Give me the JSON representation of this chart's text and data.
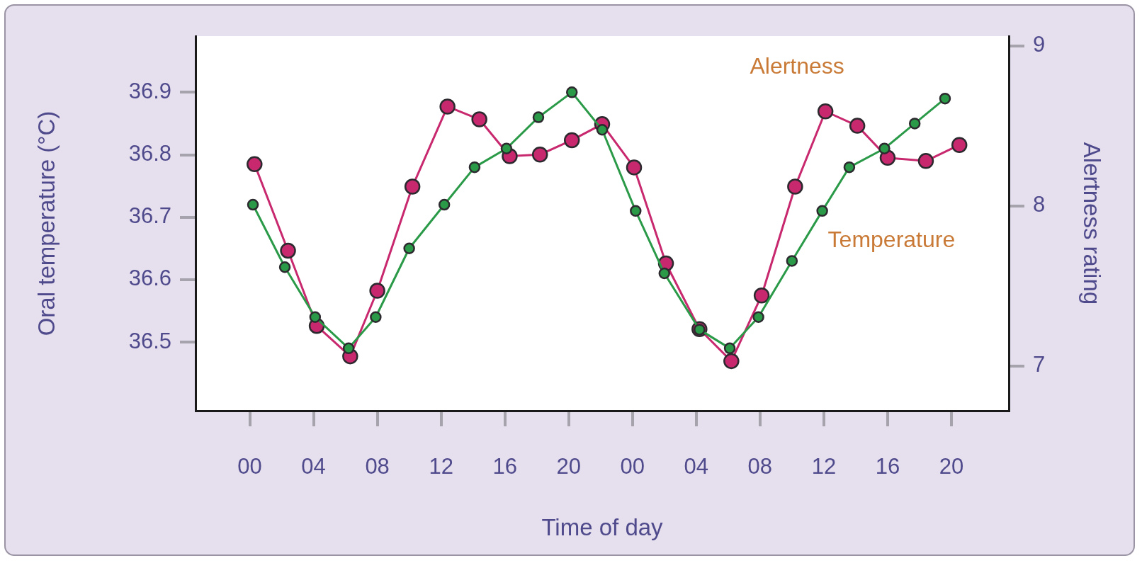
{
  "chart_data": {
    "type": "line",
    "xlabel": "Time of day",
    "ylabel": "Oral temperature (°C)",
    "y2label": "Alertness rating",
    "series": [
      {
        "name": "Alertness",
        "color": "#c8286e",
        "axis": "y2",
        "x": [
          0.3,
          2.4,
          4.2,
          6.3,
          8,
          10.2,
          12.4,
          14.4,
          16.3,
          18.2,
          20.2,
          22.1,
          24.1,
          26.1,
          28.2,
          30.2,
          32.1,
          34.2,
          36.1,
          38.1,
          40,
          42.4,
          44.5
        ],
        "values": [
          8.26,
          7.72,
          7.25,
          7.06,
          7.47,
          8.12,
          8.62,
          8.54,
          8.31,
          8.32,
          8.41,
          8.51,
          8.24,
          7.64,
          7.23,
          7.03,
          7.44,
          8.12,
          8.59,
          8.5,
          8.3,
          8.28,
          8.38
        ]
      },
      {
        "name": "Temperature",
        "color": "#2a9a48",
        "x": [
          0.2,
          2.2,
          4.1,
          6.2,
          7.9,
          10,
          12.2,
          14.1,
          16.1,
          18.1,
          20.2,
          22.1,
          24.2,
          26,
          28.2,
          30.1,
          31.9,
          34,
          35.9,
          37.6,
          39.8,
          41.7,
          43.6
        ],
        "values": [
          36.72,
          36.62,
          36.54,
          36.49,
          36.54,
          36.65,
          36.72,
          36.78,
          36.81,
          36.86,
          36.9,
          36.84,
          36.71,
          36.61,
          36.52,
          36.49,
          36.54,
          36.63,
          36.71,
          36.78,
          36.81,
          36.85,
          36.89
        ]
      }
    ],
    "xlim": [
      -3.4,
      47.6
    ],
    "xticks": [
      {
        "value": 0,
        "label": "00"
      },
      {
        "value": 4,
        "label": "04"
      },
      {
        "value": 8,
        "label": "08"
      },
      {
        "value": 12,
        "label": "12"
      },
      {
        "value": 16,
        "label": "16"
      },
      {
        "value": 20,
        "label": "20"
      },
      {
        "value": 24,
        "label": "00"
      },
      {
        "value": 28,
        "label": "04"
      },
      {
        "value": 32,
        "label": "08"
      },
      {
        "value": 36,
        "label": "12"
      },
      {
        "value": 40,
        "label": "16"
      },
      {
        "value": 44,
        "label": "20"
      }
    ],
    "ylim": [
      36.39,
      36.99
    ],
    "yticks": [
      36.5,
      36.6,
      36.7,
      36.8,
      36.9
    ],
    "y2lim": [
      6.72,
      9.06
    ],
    "y2ticks": [
      7,
      8,
      9
    ],
    "legend": false,
    "marker": "circle",
    "line_style": "solid"
  }
}
